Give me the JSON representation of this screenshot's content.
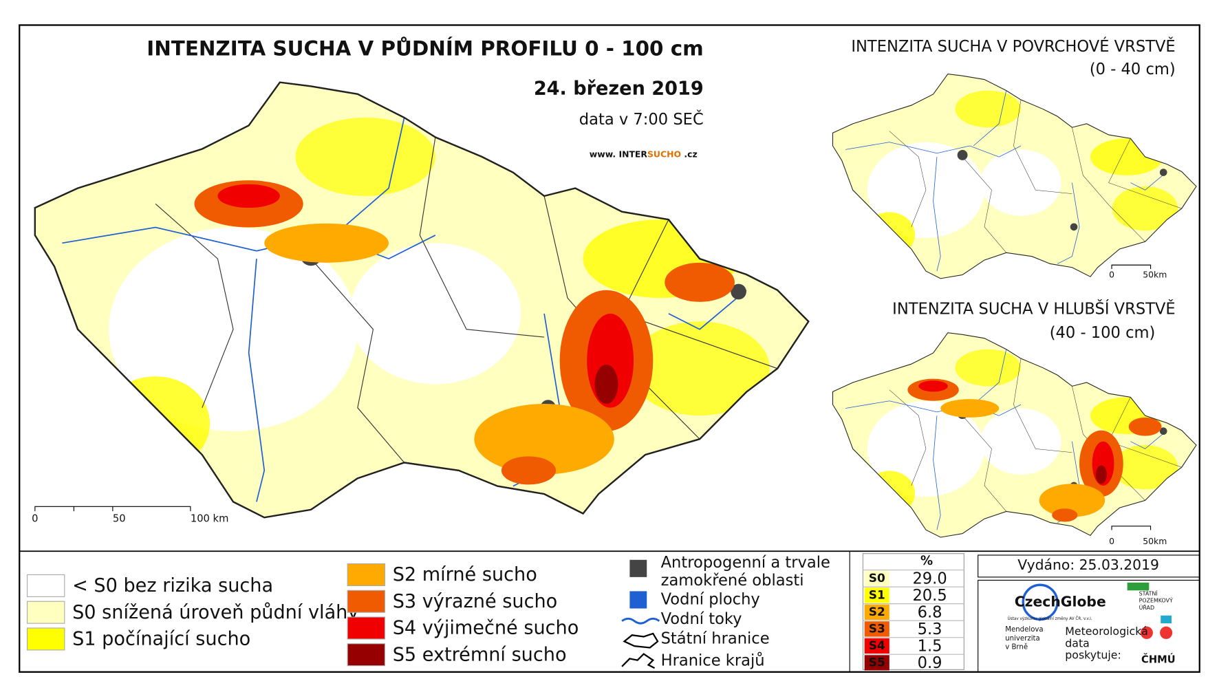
{
  "title": "INTENZITA SUCHA V PŮDNÍM PROFILU 0 - 100 cm",
  "date": "24. březen 2019",
  "data_time": "data v 7:00 SEČ",
  "website": [
    "www. INTER",
    "SUCHO",
    " .cz"
  ],
  "main_scale": [
    "0",
    "50",
    "100 km"
  ],
  "insets": [
    {
      "title": "INTENZITA SUCHA V POVRCHOVÉ VRSTVĚ",
      "subtitle": "(0 - 40 cm)",
      "scale": [
        "0",
        "50km"
      ]
    },
    {
      "title": "INTENZITA SUCHA V HLUBŠÍ VRSTVĚ",
      "subtitle": "(40 - 100 cm)",
      "scale": [
        "0",
        "50km"
      ]
    }
  ],
  "legend": {
    "drought": [
      {
        "label": "< S0 bez rizika sucha",
        "color": "#ffffff"
      },
      {
        "label": "S0 snížená úroveň půdní vláhy",
        "color": "#ffffc0"
      },
      {
        "label": "S1 počínající sucho",
        "color": "#ffff00"
      },
      {
        "label": "S2 mírné sucho",
        "color": "#ffaa00"
      },
      {
        "label": "S3 výrazné sucho",
        "color": "#f05a00"
      },
      {
        "label": "S4 výjimečné sucho",
        "color": "#f00000"
      },
      {
        "label": "S5 extrémní sucho",
        "color": "#960000"
      }
    ],
    "other": [
      {
        "label": [
          "Antropogenní a trvale",
          "zamokřené oblasti"
        ]
      },
      {
        "label": [
          "Vodní plochy"
        ]
      },
      {
        "label": [
          "Vodní toky"
        ]
      },
      {
        "label": [
          "Státní hranice"
        ]
      },
      {
        "label": [
          "Hranice krajů"
        ]
      }
    ]
  },
  "table": {
    "header": "%",
    "rows": [
      {
        "class": "S0",
        "percent": "29.0",
        "color": "#ffffc0"
      },
      {
        "class": "S1",
        "percent": "20.5",
        "color": "#ffff00"
      },
      {
        "class": "S2",
        "percent": "6.8",
        "color": "#ffaa00"
      },
      {
        "class": "S3",
        "percent": "5.3",
        "color": "#f05a00"
      },
      {
        "class": "S4",
        "percent": "1.5",
        "color": "#f00000"
      },
      {
        "class": "S5",
        "percent": "0.9",
        "color": "#960000"
      }
    ]
  },
  "issued": "Vydáno: 25.03.2019",
  "logos": {
    "czechglobe": "CzechGlobe",
    "czechglobe_sub": "Ústav výzkumu globální změny AV ČR, v.v.i.",
    "spu": [
      "STÁTNÍ",
      "POZEMKOVÝ",
      "ÚŘAD"
    ],
    "mendelu": [
      "Mendelova",
      "univerzita",
      "v Brně"
    ],
    "chmi_note": [
      "Meteorologická",
      "data",
      "poskytuje:"
    ],
    "chmu": "ČHMÚ"
  }
}
